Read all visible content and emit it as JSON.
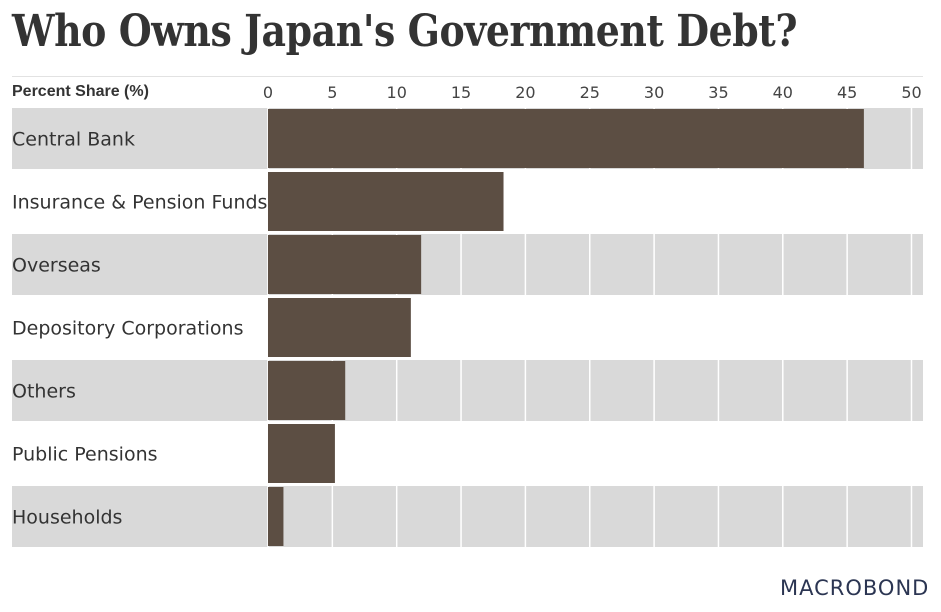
{
  "title": "Who Owns Japan's Government Debt?",
  "logo_text": "MACROBOND",
  "chart_data": {
    "type": "bar",
    "orientation": "horizontal",
    "ylabel": "Percent Share (%)",
    "categories": [
      "Central Bank",
      "Insurance & Pension Funds",
      "Overseas",
      "Depository Corporations",
      "Others",
      "Public Pensions",
      "Households"
    ],
    "values": [
      46.3,
      18.3,
      11.9,
      11.1,
      6.0,
      5.2,
      1.2
    ],
    "xlim": [
      0,
      51
    ],
    "ticks": [
      0,
      5,
      10,
      15,
      20,
      25,
      30,
      35,
      40,
      45,
      50
    ],
    "grid": true,
    "legend": "none",
    "colors": {
      "bar": "#5c4e43",
      "band": "#d9d9d9",
      "gridline": "#ffffff",
      "text": "#333333",
      "tick_text": "#444444"
    }
  }
}
